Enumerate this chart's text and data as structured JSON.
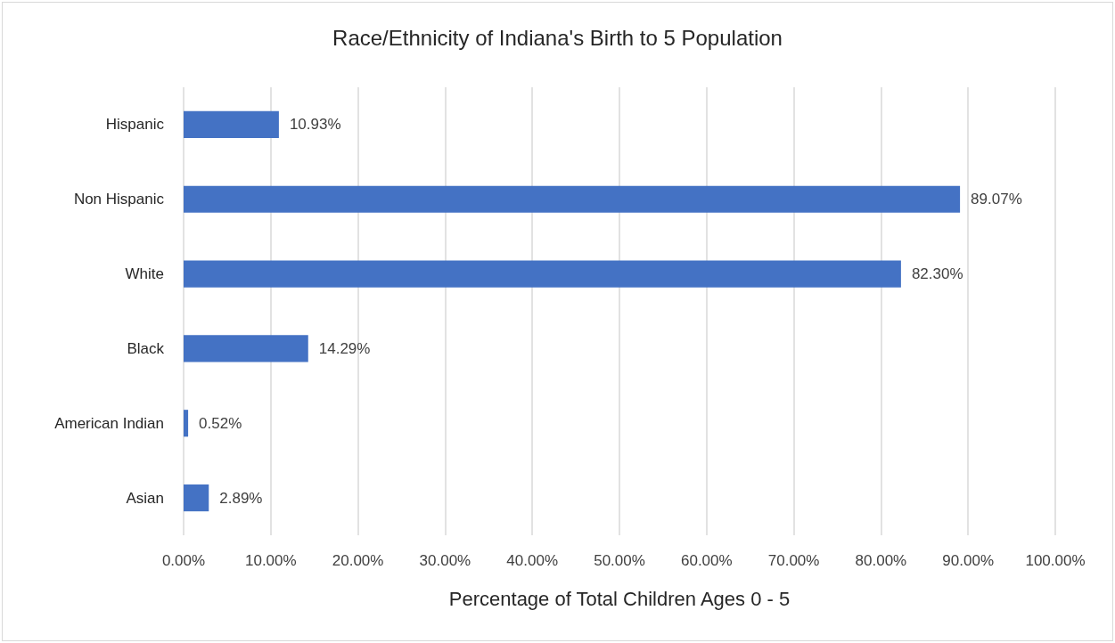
{
  "chart_data": {
    "type": "bar",
    "orientation": "horizontal",
    "title": "Race/Ethnicity of Indiana's Birth to 5 Population",
    "xlabel": "Percentage of Total Children Ages 0 - 5",
    "categories": [
      "Hispanic",
      "Non Hispanic",
      "White",
      "Black",
      "American Indian",
      "Asian"
    ],
    "values": [
      10.93,
      89.07,
      82.3,
      14.29,
      0.52,
      2.89
    ],
    "value_labels": [
      "10.93%",
      "89.07%",
      "82.30%",
      "14.29%",
      "0.52%",
      "2.89%"
    ],
    "color": "#4472c4",
    "xlim": [
      0,
      100
    ],
    "xticks": [
      {
        "value": 0,
        "label": "0.00%"
      },
      {
        "value": 10,
        "label": "10.00%"
      },
      {
        "value": 20,
        "label": "20.00%"
      },
      {
        "value": 30,
        "label": "30.00%"
      },
      {
        "value": 40,
        "label": "40.00%"
      },
      {
        "value": 50,
        "label": "50.00%"
      },
      {
        "value": 60,
        "label": "60.00%"
      },
      {
        "value": 70,
        "label": "70.00%"
      },
      {
        "value": 80,
        "label": "80.00%"
      },
      {
        "value": 90,
        "label": "90.00%"
      },
      {
        "value": 100,
        "label": "100.00%"
      }
    ],
    "grid": "x"
  }
}
